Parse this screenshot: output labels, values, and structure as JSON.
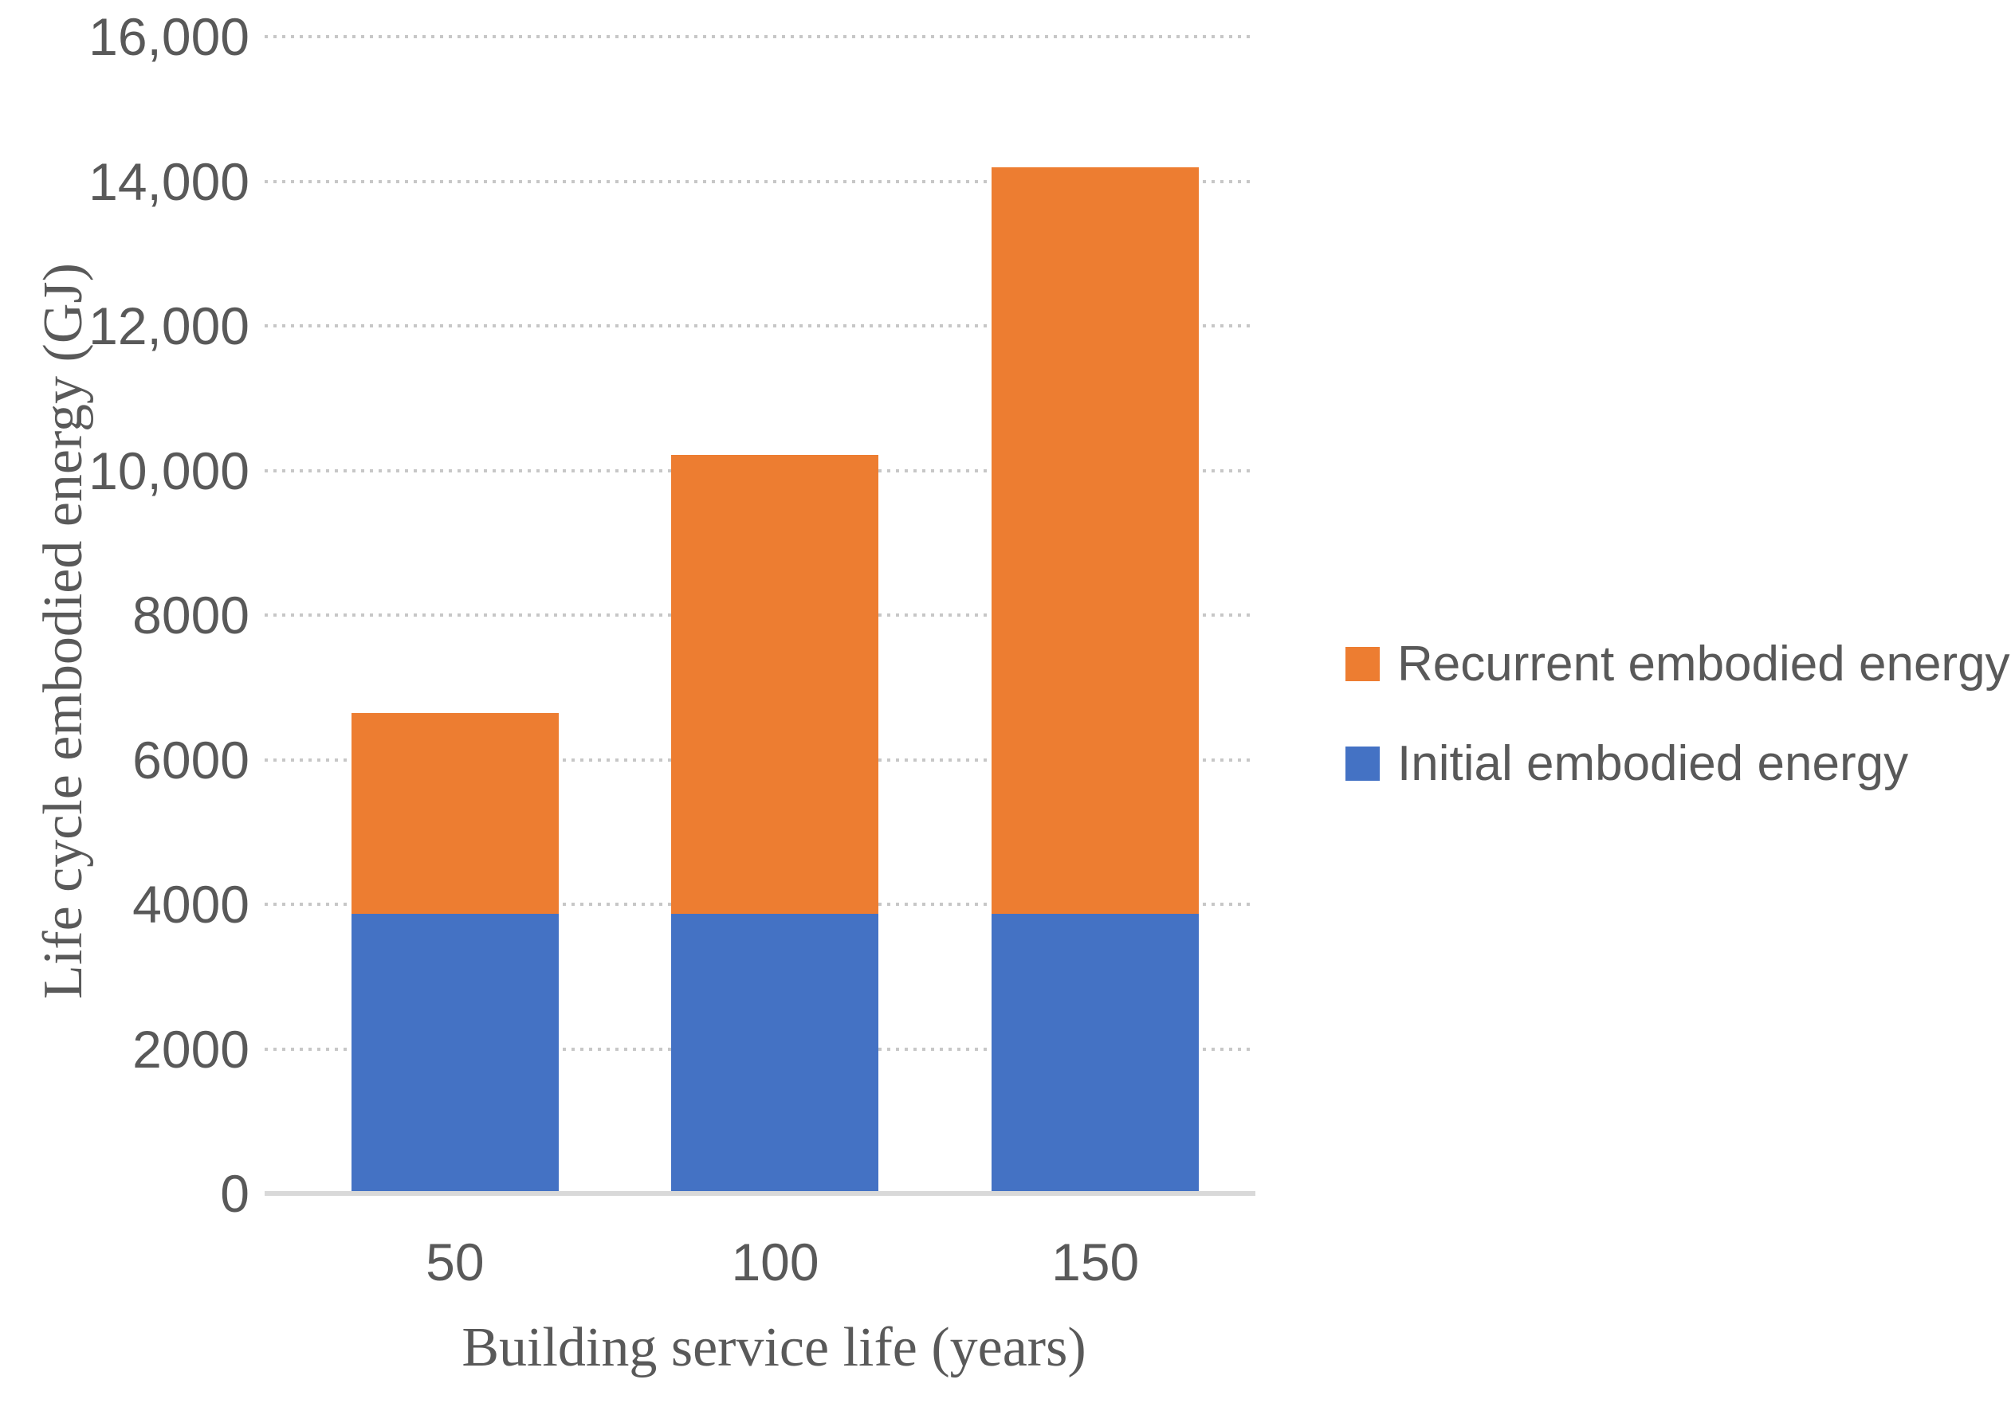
{
  "chart_data": {
    "type": "bar",
    "stacked": true,
    "title": "",
    "xlabel": "Building service life (years)",
    "ylabel": "Life cycle embodied energy (GJ)",
    "categories": [
      "50",
      "100",
      "150"
    ],
    "series": [
      {
        "name": "Initial embodied energy",
        "color": "#4472C4",
        "values": [
          3870,
          3870,
          3870
        ]
      },
      {
        "name": "Recurrent embodied energy",
        "color": "#ED7D31",
        "values": [
          2770,
          6340,
          10320
        ]
      }
    ],
    "stack_totals": [
      6640,
      10210,
      14190
    ],
    "ylim": [
      0,
      16000
    ],
    "ytick_step": 2000,
    "ytick_labels": [
      "0",
      "2000",
      "4000",
      "6000",
      "8000",
      "10,000",
      "12,000",
      "14,000",
      "16,000"
    ],
    "grid": "horizontal-dotted",
    "legend_position": "middle-right",
    "legend": [
      {
        "label": "Recurrent embodied energy",
        "color": "#ED7D31"
      },
      {
        "label": "Initial embodied energy",
        "color": "#4472C4"
      }
    ],
    "colors": {
      "axis_line": "#D9D9D9",
      "gridline": "#C7C7C7",
      "text": "#595959",
      "background": "#FFFFFF"
    }
  }
}
